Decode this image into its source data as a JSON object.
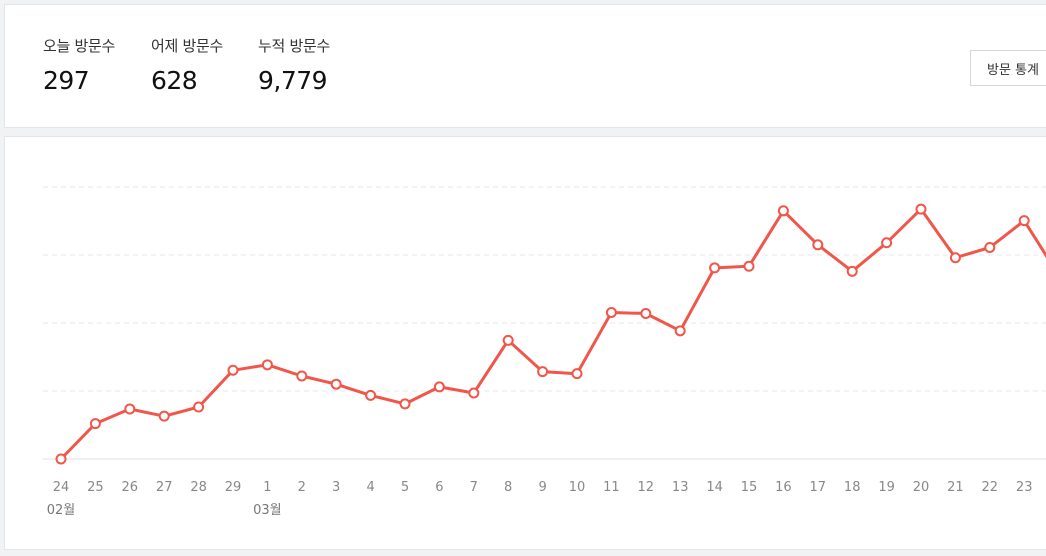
{
  "stats": {
    "today_label": "오늘 방문수",
    "today_value": "297",
    "yesterday_label": "어제 방문수",
    "yesterday_value": "628",
    "total_label": "누적 방문수",
    "total_value": "9,779",
    "button_label": "방문 통계"
  },
  "chart_data": {
    "type": "line",
    "categories": [
      "24",
      "25",
      "26",
      "27",
      "28",
      "29",
      "1",
      "2",
      "3",
      "4",
      "5",
      "6",
      "7",
      "8",
      "9",
      "10",
      "11",
      "12",
      "13",
      "14",
      "15",
      "16",
      "17",
      "18",
      "19",
      "20",
      "21",
      "22",
      "23"
    ],
    "month_labels": [
      {
        "category_index": 0,
        "label": "02월"
      },
      {
        "category_index": 6,
        "label": "03월"
      }
    ],
    "series": [
      {
        "values": [
          0,
          104,
          147,
          126,
          153,
          261,
          277,
          244,
          220,
          187,
          162,
          212,
          194,
          349,
          257,
          251,
          431,
          428,
          377,
          562,
          567,
          730,
          630,
          552,
          636,
          735,
          592,
          622,
          701
        ],
        "color": "#f0564a"
      }
    ],
    "ylim": [
      0,
      800
    ],
    "grid": true
  }
}
